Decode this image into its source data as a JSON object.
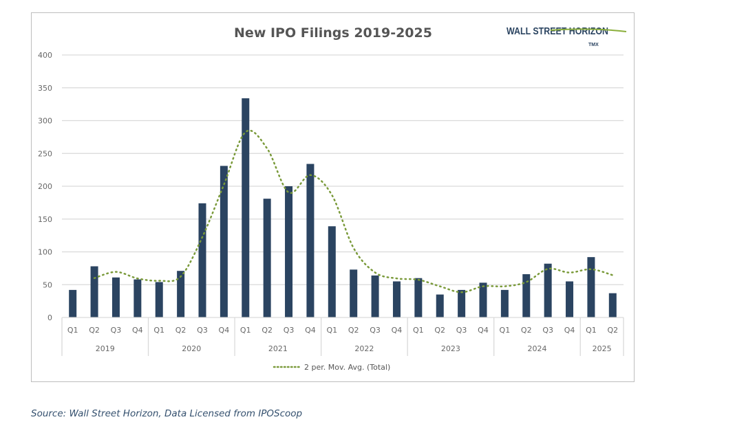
{
  "chart_data": {
    "type": "bar",
    "title": "New IPO Filings 2019-2025",
    "ylim": [
      0,
      400
    ],
    "yticks": [
      0,
      50,
      100,
      150,
      200,
      250,
      300,
      350,
      400
    ],
    "grid": true,
    "legend_position": "bottom",
    "years": [
      "2019",
      "2020",
      "2021",
      "2022",
      "2023",
      "2024",
      "2025"
    ],
    "categories": [
      {
        "year": "2019",
        "q": "Q1"
      },
      {
        "year": "2019",
        "q": "Q2"
      },
      {
        "year": "2019",
        "q": "Q3"
      },
      {
        "year": "2019",
        "q": "Q4"
      },
      {
        "year": "2020",
        "q": "Q1"
      },
      {
        "year": "2020",
        "q": "Q2"
      },
      {
        "year": "2020",
        "q": "Q3"
      },
      {
        "year": "2020",
        "q": "Q4"
      },
      {
        "year": "2021",
        "q": "Q1"
      },
      {
        "year": "2021",
        "q": "Q2"
      },
      {
        "year": "2021",
        "q": "Q3"
      },
      {
        "year": "2021",
        "q": "Q4"
      },
      {
        "year": "2022",
        "q": "Q1"
      },
      {
        "year": "2022",
        "q": "Q2"
      },
      {
        "year": "2022",
        "q": "Q3"
      },
      {
        "year": "2022",
        "q": "Q4"
      },
      {
        "year": "2023",
        "q": "Q1"
      },
      {
        "year": "2023",
        "q": "Q2"
      },
      {
        "year": "2023",
        "q": "Q3"
      },
      {
        "year": "2023",
        "q": "Q4"
      },
      {
        "year": "2024",
        "q": "Q1"
      },
      {
        "year": "2024",
        "q": "Q2"
      },
      {
        "year": "2024",
        "q": "Q3"
      },
      {
        "year": "2024",
        "q": "Q4"
      },
      {
        "year": "2025",
        "q": "Q1"
      },
      {
        "year": "2025",
        "q": "Q2"
      }
    ],
    "series": [
      {
        "type": "bar",
        "values": [
          42,
          78,
          61,
          58,
          54,
          71,
          174,
          231,
          334,
          181,
          200,
          234,
          139,
          73,
          64,
          55,
          60,
          35,
          42,
          53,
          42,
          66,
          82,
          55,
          92,
          37
        ],
        "color": "#2b4461"
      },
      {
        "type": "line",
        "name": "2 per. Mov. Avg. (Total)",
        "style": "dotted",
        "values": [
          null,
          60,
          69.5,
          59.5,
          56,
          62.5,
          122.5,
          202.5,
          282.5,
          257.5,
          190.5,
          217,
          186.5,
          106,
          68.5,
          59.5,
          57.5,
          47.5,
          38.5,
          47.5,
          47.5,
          54,
          74,
          68.5,
          73.5,
          64.5
        ],
        "color": "#7a9a3a"
      }
    ]
  },
  "logo": {
    "text": "WALL STREET HORIZON",
    "sub": "A TMX COMPANY"
  },
  "source": "Source: Wall Street Horizon, Data Licensed from IPOScoop"
}
